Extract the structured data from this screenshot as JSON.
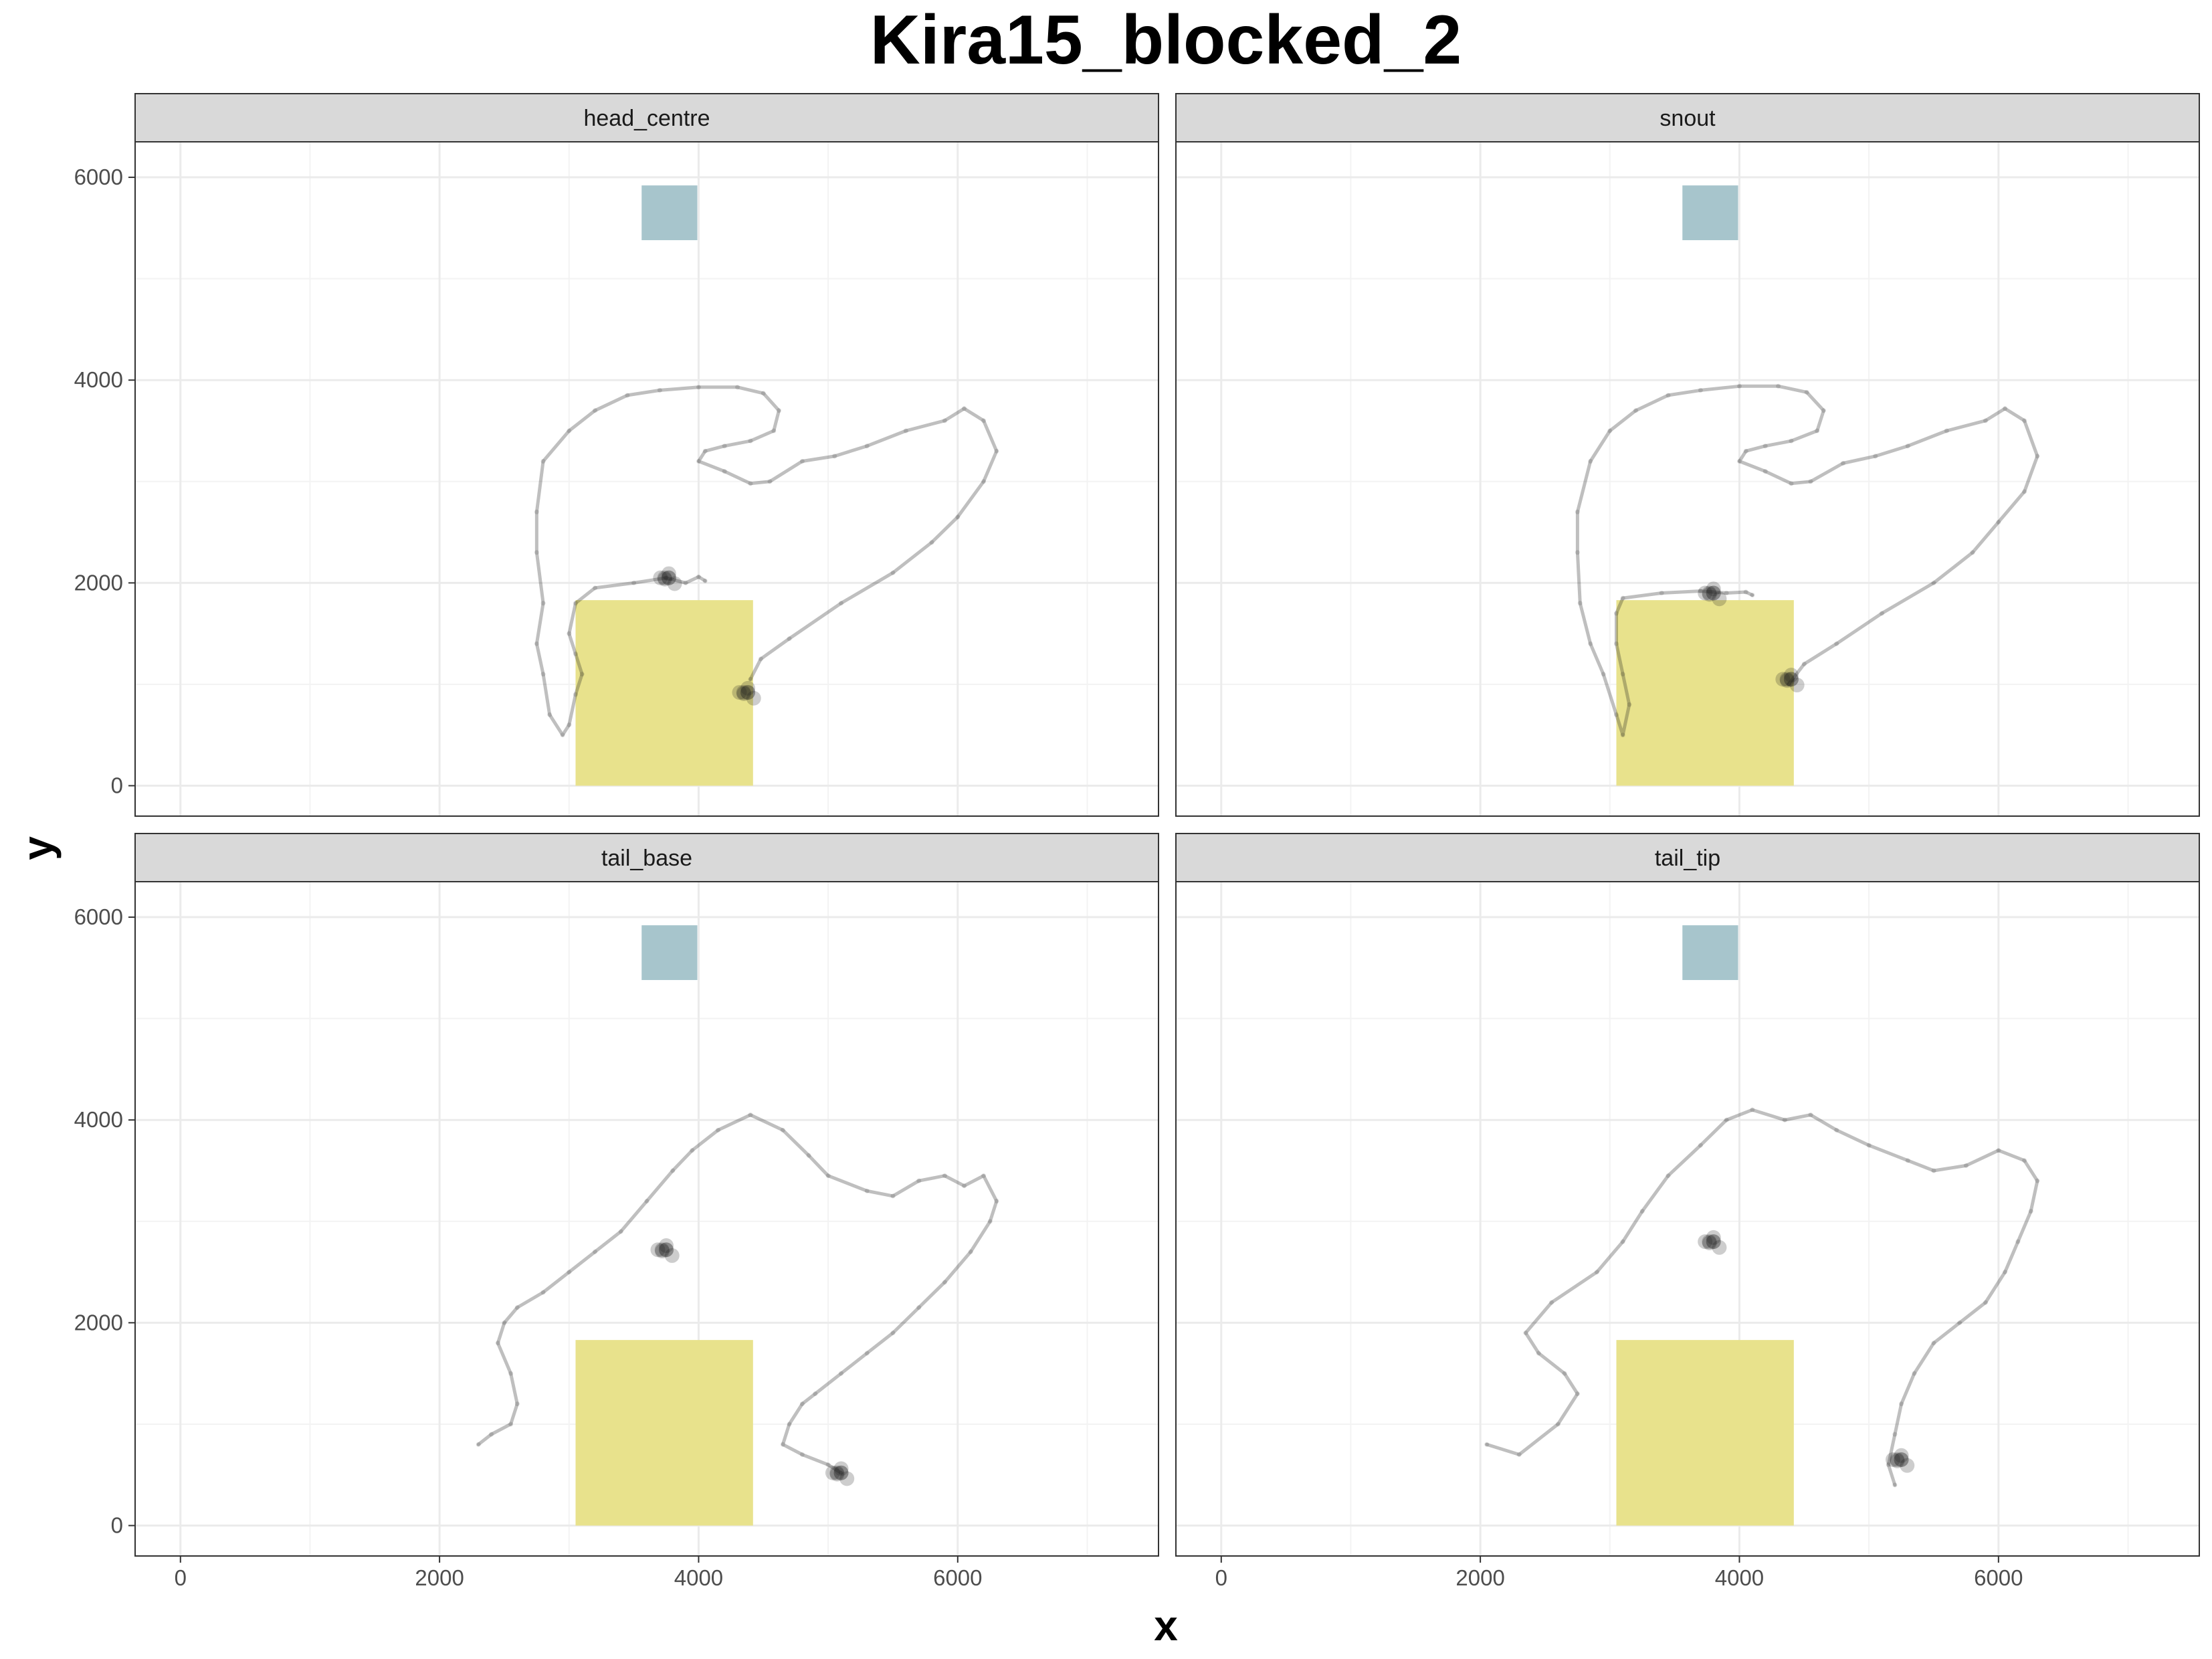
{
  "chart_data": {
    "type": "scatter",
    "title": "Kira15_blocked_2",
    "xlabel": "x",
    "ylabel": "y",
    "xlim": [
      -350,
      7550
    ],
    "ylim": [
      -300,
      6350
    ],
    "x_ticks": [
      0,
      2000,
      4000,
      6000
    ],
    "y_ticks": [
      0,
      2000,
      4000,
      6000
    ],
    "x_minor_ticks": [
      1000,
      3000,
      5000,
      7000
    ],
    "y_minor_ticks": [
      1000,
      3000,
      5000
    ],
    "grid": true,
    "legend": "none",
    "colors": {
      "strip_fill": "#d9d9d9",
      "trajectory": "#1a1a1a",
      "zone_yellow": "#e8e28c",
      "zone_blue": "#a7c5cc",
      "grid": "#ebebeb",
      "panel_border": "#333333"
    },
    "zones": [
      {
        "name": "yellow-zone",
        "x": [
          3050,
          4420
        ],
        "y": [
          0,
          1830
        ],
        "color": "#e8e28c"
      },
      {
        "name": "blue-zone",
        "x": [
          3560,
          3990
        ],
        "y": [
          5380,
          5920
        ],
        "color": "#a7c5cc"
      }
    ],
    "panels": [
      {
        "label": "head_centre",
        "path": [
          [
            4400,
            1050
          ],
          [
            4480,
            1250
          ],
          [
            4700,
            1450
          ],
          [
            5100,
            1800
          ],
          [
            5500,
            2100
          ],
          [
            5800,
            2400
          ],
          [
            6000,
            2650
          ],
          [
            6200,
            3000
          ],
          [
            6300,
            3300
          ],
          [
            6200,
            3600
          ],
          [
            6050,
            3720
          ],
          [
            5900,
            3600
          ],
          [
            5600,
            3500
          ],
          [
            5300,
            3350
          ],
          [
            5050,
            3250
          ],
          [
            4800,
            3200
          ],
          [
            4550,
            3000
          ],
          [
            4400,
            2980
          ],
          [
            4200,
            3100
          ],
          [
            4000,
            3200
          ],
          [
            4050,
            3300
          ],
          [
            4200,
            3350
          ],
          [
            4400,
            3400
          ],
          [
            4580,
            3500
          ],
          [
            4620,
            3700
          ],
          [
            4500,
            3870
          ],
          [
            4300,
            3930
          ],
          [
            4000,
            3930
          ],
          [
            3700,
            3900
          ],
          [
            3450,
            3850
          ],
          [
            3200,
            3700
          ],
          [
            3000,
            3500
          ],
          [
            2800,
            3200
          ],
          [
            2750,
            2700
          ],
          [
            2750,
            2300
          ],
          [
            2800,
            1800
          ],
          [
            2750,
            1400
          ],
          [
            2800,
            1100
          ],
          [
            2850,
            700
          ],
          [
            2950,
            500
          ],
          [
            3000,
            600
          ],
          [
            3050,
            900
          ],
          [
            3100,
            1100
          ],
          [
            3050,
            1300
          ],
          [
            3000,
            1500
          ],
          [
            3050,
            1800
          ],
          [
            3200,
            1950
          ],
          [
            3500,
            2000
          ],
          [
            3750,
            2050
          ],
          [
            3900,
            2000
          ],
          [
            4000,
            2060
          ],
          [
            4050,
            2020
          ]
        ],
        "clusters": [
          {
            "x": 4380,
            "y": 920
          },
          {
            "x": 3770,
            "y": 2050
          }
        ]
      },
      {
        "label": "snout",
        "path": [
          [
            4380,
            1000
          ],
          [
            4500,
            1200
          ],
          [
            4750,
            1400
          ],
          [
            5100,
            1700
          ],
          [
            5500,
            2000
          ],
          [
            5800,
            2300
          ],
          [
            6000,
            2600
          ],
          [
            6200,
            2900
          ],
          [
            6300,
            3250
          ],
          [
            6200,
            3600
          ],
          [
            6050,
            3720
          ],
          [
            5900,
            3600
          ],
          [
            5600,
            3500
          ],
          [
            5300,
            3350
          ],
          [
            5050,
            3250
          ],
          [
            4800,
            3180
          ],
          [
            4550,
            3000
          ],
          [
            4400,
            2980
          ],
          [
            4200,
            3100
          ],
          [
            4000,
            3200
          ],
          [
            4050,
            3300
          ],
          [
            4200,
            3350
          ],
          [
            4400,
            3400
          ],
          [
            4600,
            3500
          ],
          [
            4650,
            3700
          ],
          [
            4520,
            3880
          ],
          [
            4300,
            3940
          ],
          [
            4000,
            3940
          ],
          [
            3700,
            3900
          ],
          [
            3450,
            3850
          ],
          [
            3200,
            3700
          ],
          [
            3000,
            3500
          ],
          [
            2850,
            3200
          ],
          [
            2750,
            2700
          ],
          [
            2750,
            2300
          ],
          [
            2770,
            1800
          ],
          [
            2850,
            1400
          ],
          [
            2950,
            1100
          ],
          [
            3050,
            700
          ],
          [
            3100,
            500
          ],
          [
            3150,
            800
          ],
          [
            3100,
            1100
          ],
          [
            3050,
            1400
          ],
          [
            3050,
            1700
          ],
          [
            3100,
            1850
          ],
          [
            3400,
            1900
          ],
          [
            3700,
            1920
          ],
          [
            3900,
            1900
          ],
          [
            4050,
            1910
          ],
          [
            4100,
            1880
          ]
        ],
        "clusters": [
          {
            "x": 4400,
            "y": 1050
          },
          {
            "x": 3800,
            "y": 1900
          }
        ]
      },
      {
        "label": "tail_base",
        "path": [
          [
            2300,
            800
          ],
          [
            2400,
            900
          ],
          [
            2550,
            1000
          ],
          [
            2600,
            1200
          ],
          [
            2550,
            1500
          ],
          [
            2450,
            1800
          ],
          [
            2500,
            2000
          ],
          [
            2600,
            2150
          ],
          [
            2800,
            2300
          ],
          [
            3000,
            2500
          ],
          [
            3200,
            2700
          ],
          [
            3400,
            2900
          ],
          [
            3600,
            3200
          ],
          [
            3800,
            3500
          ],
          [
            3950,
            3700
          ],
          [
            4150,
            3900
          ],
          [
            4400,
            4050
          ],
          [
            4650,
            3900
          ],
          [
            4850,
            3650
          ],
          [
            5000,
            3450
          ],
          [
            5300,
            3300
          ],
          [
            5500,
            3250
          ],
          [
            5700,
            3400
          ],
          [
            5900,
            3450
          ],
          [
            6050,
            3350
          ],
          [
            6200,
            3450
          ],
          [
            6300,
            3200
          ],
          [
            6250,
            3000
          ],
          [
            6100,
            2700
          ],
          [
            5900,
            2400
          ],
          [
            5700,
            2150
          ],
          [
            5500,
            1900
          ],
          [
            5300,
            1700
          ],
          [
            5100,
            1500
          ],
          [
            4900,
            1300
          ],
          [
            4800,
            1200
          ],
          [
            4700,
            1000
          ],
          [
            4650,
            800
          ],
          [
            4800,
            700
          ],
          [
            5000,
            600
          ],
          [
            5100,
            520
          ]
        ],
        "clusters": [
          {
            "x": 5100,
            "y": 520
          },
          {
            "x": 3750,
            "y": 2720
          }
        ]
      },
      {
        "label": "tail_tip",
        "path": [
          [
            2050,
            800
          ],
          [
            2300,
            700
          ],
          [
            2600,
            1000
          ],
          [
            2750,
            1300
          ],
          [
            2650,
            1500
          ],
          [
            2450,
            1700
          ],
          [
            2350,
            1900
          ],
          [
            2550,
            2200
          ],
          [
            2900,
            2500
          ],
          [
            3100,
            2800
          ],
          [
            3250,
            3100
          ],
          [
            3450,
            3450
          ],
          [
            3700,
            3750
          ],
          [
            3900,
            4000
          ],
          [
            4100,
            4100
          ],
          [
            4350,
            4000
          ],
          [
            4550,
            4050
          ],
          [
            4750,
            3900
          ],
          [
            5000,
            3750
          ],
          [
            5300,
            3600
          ],
          [
            5500,
            3500
          ],
          [
            5750,
            3550
          ],
          [
            6000,
            3700
          ],
          [
            6200,
            3600
          ],
          [
            6300,
            3400
          ],
          [
            6250,
            3100
          ],
          [
            6150,
            2800
          ],
          [
            6050,
            2500
          ],
          [
            5900,
            2200
          ],
          [
            5700,
            2000
          ],
          [
            5500,
            1800
          ],
          [
            5350,
            1500
          ],
          [
            5250,
            1200
          ],
          [
            5200,
            900
          ],
          [
            5150,
            600
          ],
          [
            5200,
            400
          ]
        ],
        "clusters": [
          {
            "x": 5250,
            "y": 650
          },
          {
            "x": 3800,
            "y": 2800
          }
        ]
      }
    ]
  }
}
